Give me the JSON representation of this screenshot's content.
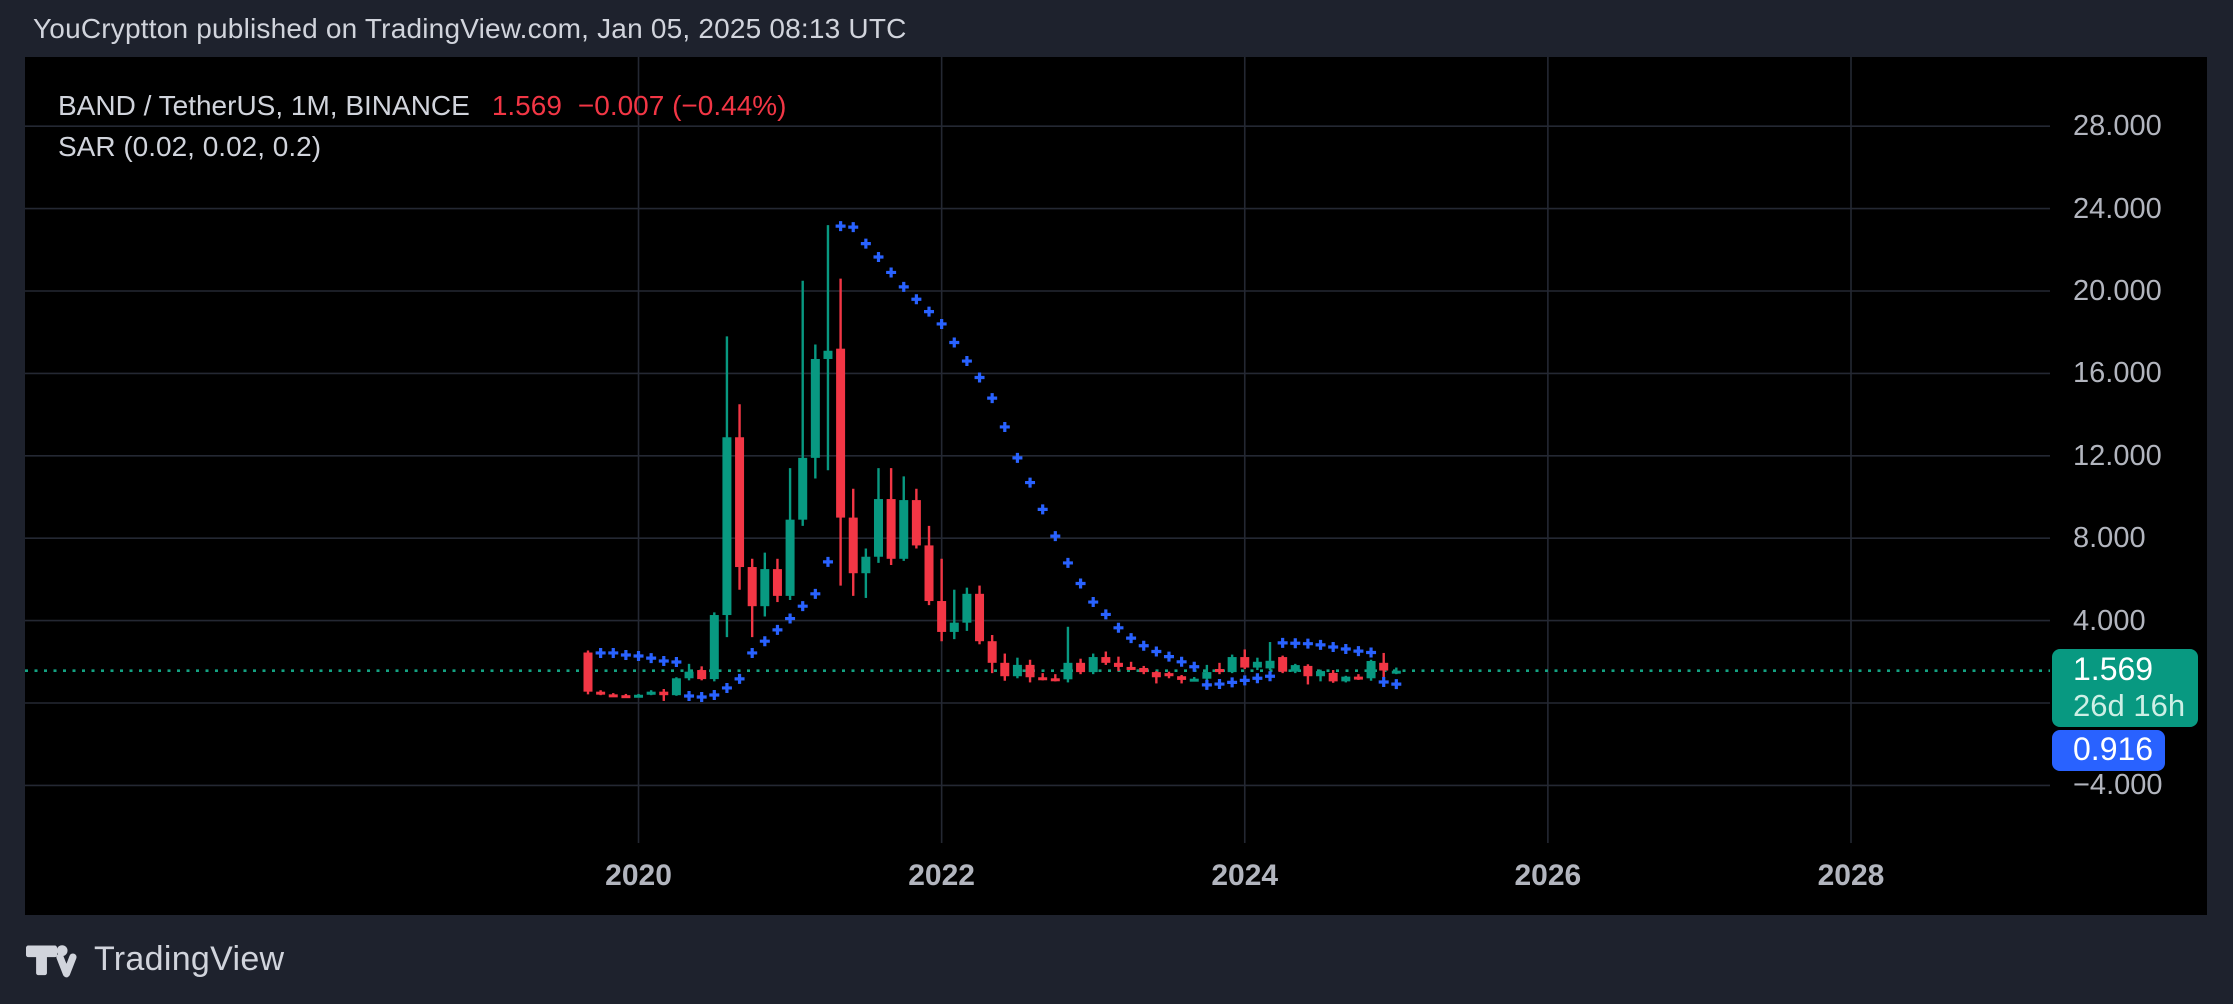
{
  "header": {
    "attribution": "YouCryptton published on TradingView.com, Jan 05, 2025 08:13 UTC"
  },
  "legend": {
    "symbol": "BAND / TetherUS, 1M, BINANCE",
    "price": "1.569",
    "change": "−0.007 (−0.44%)",
    "indicator": "SAR (0.02, 0.02, 0.2)"
  },
  "badges": {
    "price": {
      "line1": "1.569",
      "line2": "26d 16h"
    },
    "sar": {
      "value": "0.916"
    }
  },
  "footer": {
    "brand": "TradingView"
  },
  "colors": {
    "frame_bg": "#1E222D",
    "chart_bg": "#000000",
    "grid": "#242833",
    "up": "#089981",
    "down": "#F23645",
    "sar_dots": "#2962FF",
    "price_line": "#14A383",
    "badge_price_bg": "#089981",
    "badge_sar_bg": "#2962FF",
    "text_primary": "#D1D4DC",
    "text_axis": "#B2B5BE",
    "text_change": "#F23645"
  },
  "chart_data": {
    "type": "candlestick",
    "title": "BAND / TetherUS, 1M, BINANCE",
    "indicator": "SAR (0.02, 0.02, 0.2)",
    "timeframe": "1M",
    "current_price": 1.569,
    "current_sar": 0.916,
    "bar_countdown": "26d 16h",
    "ylim": [
      -6.8,
      31.4
    ],
    "grid_step": 4,
    "y_ticks": [
      {
        "label": "28.000",
        "value": 28
      },
      {
        "label": "24.000",
        "value": 24
      },
      {
        "label": "20.000",
        "value": 20
      },
      {
        "label": "16.000",
        "value": 16
      },
      {
        "label": "12.000",
        "value": 12
      },
      {
        "label": "8.000",
        "value": 8
      },
      {
        "label": "4.000",
        "value": 4
      },
      {
        "label": "−4.000",
        "value": -4
      }
    ],
    "x_years": [
      "2020",
      "2022",
      "2024",
      "2026",
      "2028"
    ],
    "start_month": "2019-09",
    "candles": [
      [
        "2019-09",
        2.45,
        2.55,
        0.42,
        0.55
      ],
      [
        "2019-10",
        0.55,
        0.62,
        0.38,
        0.42
      ],
      [
        "2019-11",
        0.42,
        0.48,
        0.33,
        0.38
      ],
      [
        "2019-12",
        0.38,
        0.44,
        0.3,
        0.36
      ],
      [
        "2020-01",
        0.36,
        0.44,
        0.32,
        0.4
      ],
      [
        "2020-02",
        0.4,
        0.62,
        0.38,
        0.55
      ],
      [
        "2020-03",
        0.55,
        0.68,
        0.1,
        0.38
      ],
      [
        "2020-04",
        0.38,
        1.25,
        0.35,
        1.2
      ],
      [
        "2020-05",
        1.2,
        1.9,
        1.1,
        1.52
      ],
      [
        "2020-06",
        1.6,
        1.78,
        1.1,
        1.16
      ],
      [
        "2020-07",
        1.16,
        4.4,
        1.05,
        4.27
      ],
      [
        "2020-08",
        4.27,
        17.8,
        3.2,
        12.9
      ],
      [
        "2020-09",
        12.9,
        14.5,
        5.5,
        6.6
      ],
      [
        "2020-10",
        6.6,
        7.0,
        3.2,
        4.7
      ],
      [
        "2020-11",
        4.7,
        7.3,
        4.2,
        6.5
      ],
      [
        "2020-12",
        6.5,
        7.0,
        4.9,
        5.2
      ],
      [
        "2021-01",
        5.2,
        11.4,
        5.0,
        8.9
      ],
      [
        "2021-02",
        8.9,
        20.5,
        8.6,
        11.9
      ],
      [
        "2021-03",
        11.9,
        17.4,
        10.9,
        16.7
      ],
      [
        "2021-04",
        16.7,
        23.2,
        11.3,
        17.1
      ],
      [
        "2021-05",
        17.2,
        20.6,
        5.7,
        9.0
      ],
      [
        "2021-06",
        9.0,
        10.4,
        5.2,
        6.3
      ],
      [
        "2021-07",
        6.3,
        7.5,
        5.1,
        7.1
      ],
      [
        "2021-08",
        7.1,
        11.4,
        6.8,
        9.9
      ],
      [
        "2021-09",
        9.9,
        11.4,
        6.7,
        7.0
      ],
      [
        "2021-10",
        7.0,
        11.0,
        6.9,
        9.85
      ],
      [
        "2021-11",
        9.85,
        10.4,
        7.5,
        7.65
      ],
      [
        "2021-12",
        7.65,
        8.6,
        4.75,
        4.95
      ],
      [
        "2022-01",
        4.95,
        7.0,
        3.0,
        3.45
      ],
      [
        "2022-02",
        3.45,
        5.5,
        3.1,
        3.9
      ],
      [
        "2022-03",
        3.9,
        5.6,
        3.5,
        5.3
      ],
      [
        "2022-04",
        5.3,
        5.7,
        2.85,
        3.0
      ],
      [
        "2022-05",
        3.0,
        3.3,
        1.45,
        1.95
      ],
      [
        "2022-06",
        1.95,
        2.4,
        1.08,
        1.3
      ],
      [
        "2022-07",
        1.3,
        2.2,
        1.2,
        1.85
      ],
      [
        "2022-08",
        1.85,
        2.1,
        1.0,
        1.25
      ],
      [
        "2022-09",
        1.25,
        1.45,
        1.1,
        1.2
      ],
      [
        "2022-10",
        1.2,
        1.4,
        1.05,
        1.15
      ],
      [
        "2022-11",
        1.15,
        3.7,
        1.0,
        1.95
      ],
      [
        "2022-12",
        1.95,
        2.15,
        1.4,
        1.5
      ],
      [
        "2023-01",
        1.5,
        2.4,
        1.4,
        2.23
      ],
      [
        "2023-02",
        2.23,
        2.5,
        1.85,
        1.95
      ],
      [
        "2023-03",
        1.95,
        2.25,
        1.55,
        1.75
      ],
      [
        "2023-04",
        1.75,
        2.0,
        1.6,
        1.7
      ],
      [
        "2023-05",
        1.7,
        1.8,
        1.4,
        1.5
      ],
      [
        "2023-06",
        1.5,
        1.55,
        0.95,
        1.25
      ],
      [
        "2023-07",
        1.45,
        1.52,
        1.2,
        1.3
      ],
      [
        "2023-08",
        1.3,
        1.36,
        0.95,
        1.12
      ],
      [
        "2023-09",
        1.12,
        1.26,
        1.05,
        1.18
      ],
      [
        "2023-10",
        1.18,
        1.85,
        1.05,
        1.5
      ],
      [
        "2023-11",
        1.65,
        1.95,
        1.4,
        1.5
      ],
      [
        "2023-12",
        1.5,
        2.35,
        1.45,
        2.23
      ],
      [
        "2024-01",
        2.23,
        2.6,
        1.65,
        1.72
      ],
      [
        "2024-02",
        1.72,
        2.2,
        1.6,
        2.0
      ],
      [
        "2024-03",
        1.68,
        2.96,
        1.6,
        2.05
      ],
      [
        "2024-04",
        2.23,
        2.3,
        1.45,
        1.52
      ],
      [
        "2024-05",
        1.52,
        1.9,
        1.45,
        1.84
      ],
      [
        "2024-06",
        1.8,
        1.88,
        0.9,
        1.3
      ],
      [
        "2024-07",
        1.3,
        1.62,
        1.05,
        1.55
      ],
      [
        "2024-08",
        1.46,
        1.6,
        0.98,
        1.05
      ],
      [
        "2024-09",
        1.05,
        1.32,
        1.0,
        1.28
      ],
      [
        "2024-10",
        1.28,
        1.4,
        1.12,
        1.2
      ],
      [
        "2024-11",
        1.2,
        2.1,
        1.08,
        2.04
      ],
      [
        "2024-12",
        1.95,
        2.43,
        1.1,
        1.576
      ],
      [
        "2025-01",
        1.44,
        1.72,
        1.4,
        1.569
      ]
    ],
    "sar": [
      [
        "2019-10",
        2.43,
        "above"
      ],
      [
        "2019-11",
        2.43,
        "above"
      ],
      [
        "2019-12",
        2.33,
        "above"
      ],
      [
        "2020-01",
        2.28,
        "above"
      ],
      [
        "2020-02",
        2.18,
        "above"
      ],
      [
        "2020-03",
        2.04,
        "above"
      ],
      [
        "2020-04",
        1.99,
        "above"
      ],
      [
        "2020-05",
        0.34,
        "below"
      ],
      [
        "2020-06",
        0.29,
        "below"
      ],
      [
        "2020-07",
        0.39,
        "below"
      ],
      [
        "2020-08",
        0.73,
        "below"
      ],
      [
        "2020-09",
        1.17,
        "below"
      ],
      [
        "2020-10",
        2.43,
        "below"
      ],
      [
        "2020-11",
        3.0,
        "below"
      ],
      [
        "2020-12",
        3.55,
        "below"
      ],
      [
        "2021-01",
        4.1,
        "below"
      ],
      [
        "2021-02",
        4.7,
        "below"
      ],
      [
        "2021-03",
        5.3,
        "below"
      ],
      [
        "2021-04",
        6.85,
        "below"
      ],
      [
        "2021-05",
        23.15,
        "above"
      ],
      [
        "2021-06",
        23.1,
        "above"
      ],
      [
        "2021-07",
        22.3,
        "above"
      ],
      [
        "2021-08",
        21.65,
        "above"
      ],
      [
        "2021-09",
        20.9,
        "above"
      ],
      [
        "2021-10",
        20.2,
        "above"
      ],
      [
        "2021-11",
        19.6,
        "above"
      ],
      [
        "2021-12",
        19.0,
        "above"
      ],
      [
        "2022-01",
        18.4,
        "above"
      ],
      [
        "2022-02",
        17.5,
        "above"
      ],
      [
        "2022-03",
        16.6,
        "above"
      ],
      [
        "2022-04",
        15.8,
        "above"
      ],
      [
        "2022-05",
        14.8,
        "above"
      ],
      [
        "2022-06",
        13.4,
        "above"
      ],
      [
        "2022-07",
        11.9,
        "above"
      ],
      [
        "2022-08",
        10.7,
        "above"
      ],
      [
        "2022-09",
        9.4,
        "above"
      ],
      [
        "2022-10",
        8.1,
        "above"
      ],
      [
        "2022-11",
        6.8,
        "above"
      ],
      [
        "2022-12",
        5.8,
        "above"
      ],
      [
        "2023-01",
        4.9,
        "above"
      ],
      [
        "2023-02",
        4.3,
        "above"
      ],
      [
        "2023-03",
        3.65,
        "above"
      ],
      [
        "2023-04",
        3.15,
        "above"
      ],
      [
        "2023-05",
        2.78,
        "above"
      ],
      [
        "2023-06",
        2.5,
        "above"
      ],
      [
        "2023-07",
        2.25,
        "above"
      ],
      [
        "2023-08",
        2.0,
        "above"
      ],
      [
        "2023-09",
        1.76,
        "above"
      ],
      [
        "2023-10",
        0.88,
        "below"
      ],
      [
        "2023-11",
        0.92,
        "below"
      ],
      [
        "2023-12",
        1.0,
        "below"
      ],
      [
        "2024-01",
        1.1,
        "below"
      ],
      [
        "2024-02",
        1.2,
        "below"
      ],
      [
        "2024-03",
        1.3,
        "below"
      ],
      [
        "2024-04",
        2.92,
        "above"
      ],
      [
        "2024-05",
        2.9,
        "above"
      ],
      [
        "2024-06",
        2.88,
        "above"
      ],
      [
        "2024-07",
        2.82,
        "above"
      ],
      [
        "2024-08",
        2.72,
        "above"
      ],
      [
        "2024-09",
        2.62,
        "above"
      ],
      [
        "2024-10",
        2.52,
        "above"
      ],
      [
        "2024-11",
        2.45,
        "above"
      ],
      [
        "2024-12",
        1.02,
        "below"
      ],
      [
        "2025-01",
        0.916,
        "below"
      ]
    ]
  }
}
